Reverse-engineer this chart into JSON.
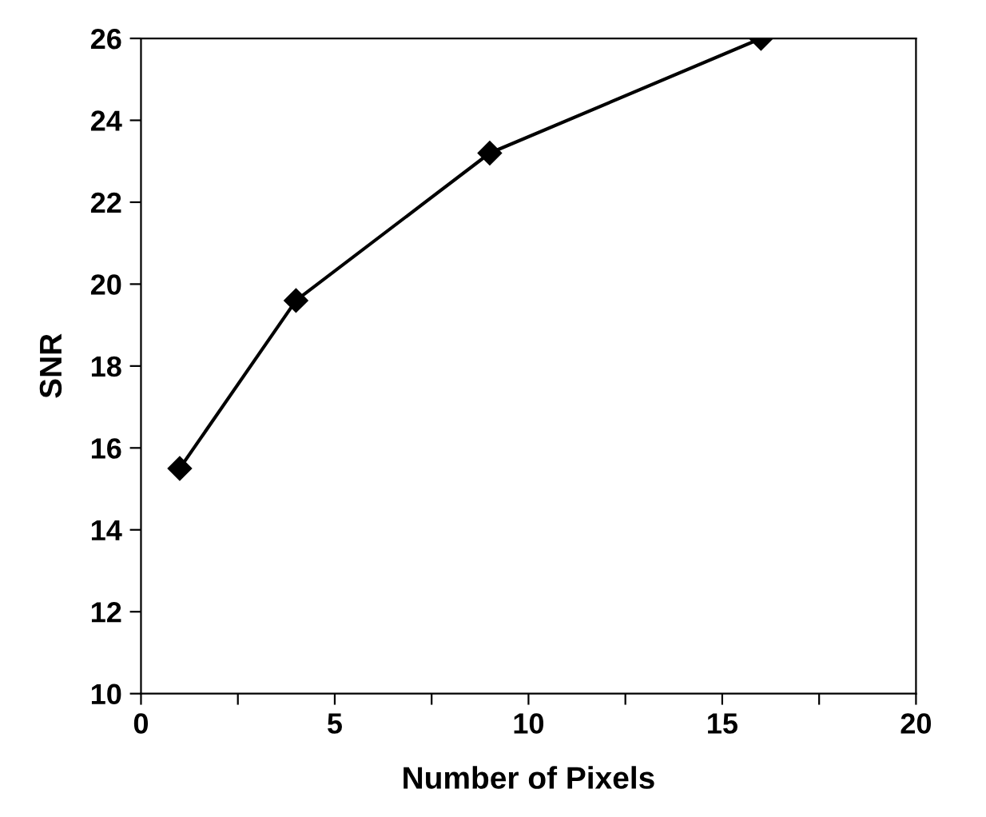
{
  "chart_data": {
    "type": "line",
    "xlabel": "Number of Pixels",
    "ylabel": "SNR",
    "x": [
      1,
      4,
      9,
      16
    ],
    "series": [
      {
        "color": "#000000",
        "values": [
          15.5,
          19.6,
          23.2,
          26.0
        ]
      }
    ],
    "xlim": [
      0,
      20
    ],
    "xticks": [
      0,
      {
        "value": 2.5,
        "label": null
      },
      5,
      {
        "value": 7.5,
        "label": null
      },
      10,
      {
        "value": 12.5,
        "label": null
      },
      15,
      {
        "value": 17.5,
        "label": null
      },
      20
    ],
    "ylim": [
      10,
      26
    ],
    "yticks": [
      10,
      12,
      14,
      16,
      18,
      20,
      22,
      24,
      26
    ],
    "grid": false,
    "legend": false,
    "marker": "diamond",
    "line_style": "solid"
  }
}
